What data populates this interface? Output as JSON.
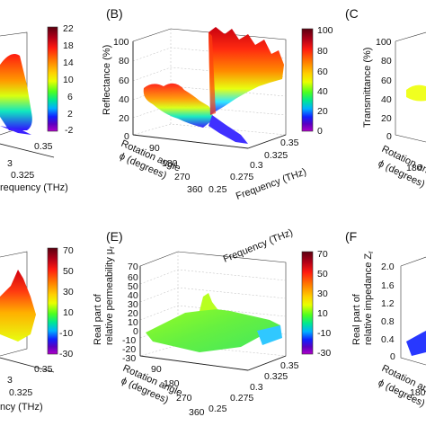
{
  "colorbar_colors": [
    "#5a0010",
    "#b00018",
    "#ff1a10",
    "#ff7a00",
    "#ffd000",
    "#e8ff00",
    "#4cff20",
    "#00e890",
    "#00b0ff",
    "#1020ff",
    "#5a00c0",
    "#b000c8"
  ],
  "chart_data": [
    {
      "panel": "",
      "type": "surface3d",
      "zlabel": "",
      "xlabel": "requency (THz)",
      "ylabel": "",
      "x_ticks": [
        "3",
        "0.325",
        "0.35"
      ],
      "y_ticks": [],
      "z_ticks": [],
      "colorbar": {
        "ticks": [
          "22",
          "18",
          "14",
          "10",
          "6",
          "2",
          "-2"
        ],
        "range": [
          -2,
          22
        ]
      },
      "surface_color": "rainbow"
    },
    {
      "panel": "(B)",
      "type": "surface3d",
      "zlabel": "Reflectance (%)",
      "xlabel": "Frequency (THz)",
      "ylabel": [
        "Rotation angle",
        "ϕ (degrees)"
      ],
      "x_ticks": [
        "0.25",
        "0.275",
        "0.3",
        "0.325",
        "0.35"
      ],
      "y_ticks": [
        "90",
        "180",
        "270",
        "360"
      ],
      "z_ticks": [
        "0",
        "20",
        "40",
        "60",
        "80",
        "100"
      ],
      "colorbar": {
        "ticks": [
          "100",
          "80",
          "60",
          "40",
          "20",
          "0"
        ],
        "range": [
          0,
          100
        ]
      },
      "surface": "reflectance ~40-50% (yellow/green) below 0.3 THz, rising steeply to ~90-100% (red) above 0.3 THz"
    },
    {
      "panel": "(C",
      "type": "surface3d",
      "zlabel": "Transmittance (%)",
      "xlabel": "",
      "ylabel": [
        "Rotation ang",
        "ϕ (degrees)"
      ],
      "x_ticks": [],
      "y_ticks": [
        "180"
      ],
      "z_ticks": [
        "0",
        "20",
        "40",
        "60",
        "80",
        "100"
      ],
      "colorbar": {
        "ticks": [],
        "range": [
          0,
          100
        ]
      },
      "surface": "yellow region near 50%"
    },
    {
      "panel": "",
      "type": "surface3d",
      "zlabel": "",
      "xlabel": "ncy (THz)",
      "ylabel": "",
      "x_ticks": [
        "3",
        "0.325",
        "0.35"
      ],
      "y_ticks": [],
      "z_ticks": [],
      "colorbar": {
        "ticks": [
          "70",
          "50",
          "30",
          "10",
          "-10",
          "-30"
        ],
        "range": [
          -30,
          70
        ]
      },
      "surface_color": "rainbow"
    },
    {
      "panel": "(E)",
      "type": "surface3d",
      "zlabel": [
        "Real part of",
        "relative permeability μ",
        "r"
      ],
      "xlabel": "Frequency (THz)",
      "ylabel": [
        "Rotation angle",
        "ϕ (degrees)"
      ],
      "x_ticks": [
        "0.25",
        "0.275",
        "0.3",
        "0.325",
        "0.35"
      ],
      "y_ticks": [
        "90",
        "180",
        "270",
        "360"
      ],
      "z_ticks": [
        "-30",
        "-20",
        "-10",
        "0",
        "10",
        "20",
        "30",
        "40",
        "50",
        "60",
        "70"
      ],
      "colorbar": {
        "ticks": [
          "70",
          "50",
          "30",
          "10",
          "-10",
          "-30"
        ],
        "range": [
          -30,
          70
        ]
      },
      "surface": "nearly flat green surface around 0-10 with small ridge near 0.3 THz"
    },
    {
      "panel": "(F",
      "type": "surface3d",
      "zlabel": [
        "Real part of",
        "relative impedance Z",
        "r"
      ],
      "xlabel": "",
      "ylabel": [
        "Rotation ang",
        "ϕ (degrees)"
      ],
      "x_ticks": [],
      "y_ticks": [
        "180"
      ],
      "z_ticks": [
        "0",
        "0.4",
        "0.8",
        "1.2",
        "1.6",
        "2.0"
      ],
      "colorbar": {
        "ticks": [],
        "range": [
          0,
          2
        ]
      },
      "surface": "blue region near 0-0.4"
    }
  ]
}
